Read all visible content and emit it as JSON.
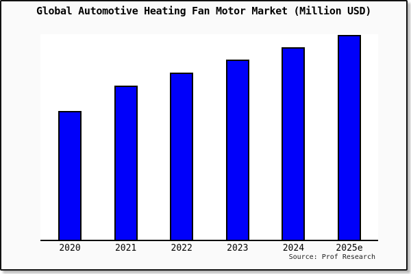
{
  "chart_data": {
    "type": "bar",
    "title": "Global Automotive Heating Fan Motor Market (Million USD)",
    "categories": [
      "2020",
      "2021",
      "2022",
      "2023",
      "2024",
      "2025e"
    ],
    "values": [
      188,
      225,
      244,
      263,
      281,
      299
    ],
    "value_note": "no numeric y-axis is shown in the image; values are relative bar heights (px) against a 300px plot height",
    "ylim": [
      0,
      300
    ],
    "xlabel": "",
    "ylabel": "",
    "grid": false,
    "legend": false,
    "source_label": "Source: Prof Research"
  },
  "colors": {
    "bar_fill": "#0000fa",
    "bar_border": "#000000",
    "card_background": "#fafafa",
    "plot_background": "#ffffff",
    "card_border": "#111111",
    "axis": "#000000",
    "title_text": "#000000",
    "tick_text": "#000000",
    "source_text": "#1c1c1c",
    "shadow": "#bcbcbc"
  }
}
